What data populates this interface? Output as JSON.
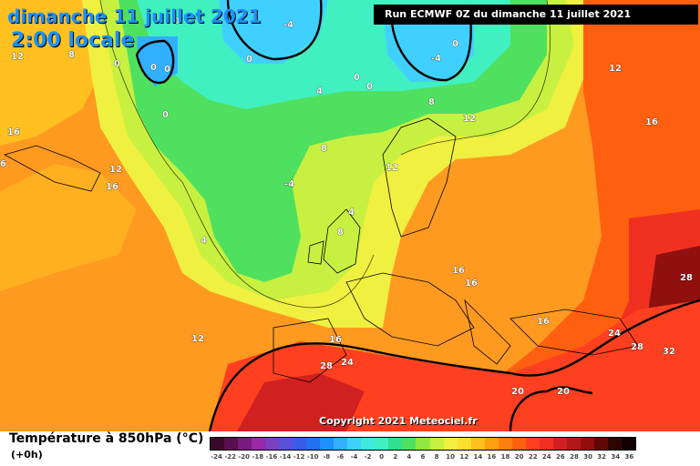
{
  "header": {
    "date_line": "dimanche 11 juillet 2021",
    "time_line": "2:00 locale",
    "run_info": "Run ECMWF 0Z du dimanche 11 juillet 2021"
  },
  "copyright": "Copyright 2021 Meteociel.fr",
  "footer": {
    "title": "Température à 850hPa (°C)",
    "subtitle": "(+0h)"
  },
  "legend": {
    "values": [
      "-24",
      "-22",
      "-20",
      "-18",
      "-16",
      "-14",
      "-12",
      "-10",
      "-8",
      "-6",
      "-4",
      "-2",
      "0",
      "2",
      "4",
      "6",
      "8",
      "10",
      "12",
      "14",
      "16",
      "18",
      "20",
      "22",
      "24",
      "26",
      "28",
      "30",
      "32",
      "34",
      "36"
    ],
    "colors": [
      "#3a0a2a",
      "#5a1050",
      "#7a1a80",
      "#9a28a8",
      "#7a40c0",
      "#5a50d8",
      "#3a5ae8",
      "#2070f0",
      "#1e90ff",
      "#30b0ff",
      "#40d0ff",
      "#40e8e0",
      "#40f0c0",
      "#30e090",
      "#50e060",
      "#90e840",
      "#c8f040",
      "#f0f040",
      "#ffe030",
      "#ffc020",
      "#ffa010",
      "#ff8010",
      "#ff6010",
      "#ff4020",
      "#f03020",
      "#d02020",
      "#b01818",
      "#901010",
      "#600808",
      "#300404",
      "#100000"
    ]
  },
  "map_labels": [
    {
      "text": "12",
      "id": "t1"
    },
    {
      "text": "8",
      "id": "t2"
    },
    {
      "text": "0",
      "id": "t3"
    },
    {
      "text": "0",
      "id": "t4"
    },
    {
      "text": "0",
      "id": "t5"
    },
    {
      "text": "0",
      "id": "t6"
    },
    {
      "text": "-4",
      "id": "t7"
    },
    {
      "text": "0",
      "id": "t8"
    },
    {
      "text": "0",
      "id": "t9"
    },
    {
      "text": "0",
      "id": "t10"
    },
    {
      "text": "4",
      "id": "t11"
    },
    {
      "text": "0",
      "id": "t12"
    },
    {
      "text": "-4",
      "id": "t13"
    },
    {
      "text": "0",
      "id": "t14"
    },
    {
      "text": "12",
      "id": "t15"
    },
    {
      "text": "16",
      "id": "t16"
    },
    {
      "text": "16",
      "id": "t17"
    },
    {
      "text": "6",
      "id": "t18"
    },
    {
      "text": "12",
      "id": "t19"
    },
    {
      "text": "16",
      "id": "t20"
    },
    {
      "text": "8",
      "id": "t21"
    },
    {
      "text": "-4",
      "id": "t22"
    },
    {
      "text": "12",
      "id": "t23"
    },
    {
      "text": "4",
      "id": "t24"
    },
    {
      "text": "4",
      "id": "t25"
    },
    {
      "text": "8",
      "id": "t26"
    },
    {
      "text": "16",
      "id": "t27"
    },
    {
      "text": "16",
      "id": "t28"
    },
    {
      "text": "16",
      "id": "t29"
    },
    {
      "text": "12",
      "id": "t30"
    },
    {
      "text": "16",
      "id": "t31"
    },
    {
      "text": "28",
      "id": "t32"
    },
    {
      "text": "24",
      "id": "t33"
    },
    {
      "text": "24",
      "id": "t34"
    },
    {
      "text": "28",
      "id": "t35"
    },
    {
      "text": "32",
      "id": "t36"
    },
    {
      "text": "28",
      "id": "t37"
    },
    {
      "text": "20",
      "id": "t38"
    },
    {
      "text": "20",
      "id": "t39"
    },
    {
      "text": "12",
      "id": "t40"
    },
    {
      "text": "8",
      "id": "t41"
    }
  ]
}
